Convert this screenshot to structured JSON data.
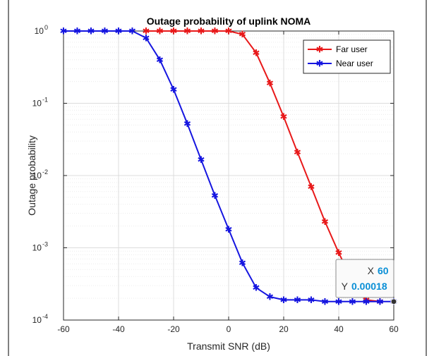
{
  "chart_data": {
    "type": "line",
    "title": "Outage probability of uplink NOMA",
    "xlabel": "Transmit SNR (dB)",
    "ylabel": "Outage probability",
    "scale_y": "log",
    "xlim": [
      -60,
      60
    ],
    "ylim": [
      0.0001,
      1
    ],
    "grid": true,
    "x_ticks": [
      "-60",
      "-40",
      "-20",
      "0",
      "20",
      "40",
      "60"
    ],
    "y_ticks": [
      {
        "base": "10",
        "exp": "0"
      },
      {
        "base": "10",
        "exp": "-1"
      },
      {
        "base": "10",
        "exp": "-2"
      },
      {
        "base": "10",
        "exp": "-3"
      },
      {
        "base": "10",
        "exp": "-4"
      }
    ],
    "legend_position": "top-right",
    "series": [
      {
        "name": "Far user",
        "color": "#e8191a",
        "x": [
          -30,
          -25,
          -20,
          -15,
          -10,
          -5,
          0,
          5,
          10,
          15,
          20,
          25,
          30,
          35,
          40,
          45,
          50,
          55
        ],
        "y": [
          1,
          1,
          1,
          1,
          1,
          1,
          1,
          0.9,
          0.5,
          0.19,
          0.065,
          0.021,
          0.007,
          0.0023,
          0.00085,
          0.00035,
          0.00019,
          0.00018
        ]
      },
      {
        "name": "Near user",
        "color": "#1515e0",
        "x": [
          -60,
          -55,
          -50,
          -45,
          -40,
          -35,
          -30,
          -25,
          -20,
          -15,
          -10,
          -5,
          0,
          5,
          10,
          15,
          20,
          25,
          30,
          35,
          40,
          45,
          50,
          55,
          60
        ],
        "y": [
          1,
          1,
          1,
          1,
          1,
          1,
          0.8,
          0.4,
          0.155,
          0.052,
          0.0165,
          0.0053,
          0.0018,
          0.00062,
          0.00028,
          0.00021,
          0.00019,
          0.00019,
          0.00019,
          0.00018,
          0.00018,
          0.00018,
          0.00018,
          0.00018,
          0.00018
        ]
      }
    ],
    "datatip": {
      "x_label": "X",
      "x_value": "60",
      "y_label": "Y",
      "y_value": "0.00018",
      "x": 60,
      "y": 0.00018,
      "value_color": "#0a8fd6"
    }
  }
}
